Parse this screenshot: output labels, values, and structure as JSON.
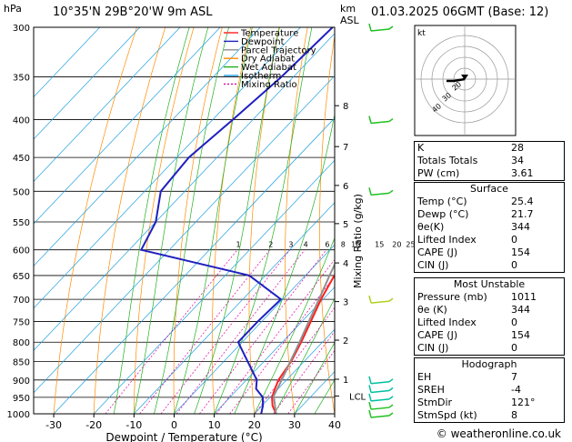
{
  "header": {
    "location": "10°35'N 29B°20'W 9m ASL",
    "datetime": "01.03.2025 06GMT (Base: 12)",
    "hpa_label": "hPa",
    "km_label": "km",
    "asl_label": "ASL"
  },
  "legend": [
    "Temperature",
    "Dewpoint",
    "Parcel Trajectory",
    "Dry Adiabat",
    "Wet Adiabat",
    "Isotherm",
    "Mixing Ratio"
  ],
  "chart_data": {
    "type": "line",
    "title": "",
    "xlabel": "Dewpoint / Temperature (°C)",
    "ylabel": "hPa",
    "right_ylabel": "Mixing Ratio (g/kg)",
    "xlim": [
      -35,
      40
    ],
    "ylim": [
      1000,
      300
    ],
    "x_ticks": [
      -30,
      -20,
      -10,
      0,
      10,
      20,
      30,
      40
    ],
    "pressure_levels": [
      300,
      350,
      400,
      450,
      500,
      550,
      600,
      650,
      700,
      750,
      800,
      850,
      900,
      950,
      1000
    ],
    "km_ticks": [
      {
        "km": "1",
        "p": 898
      },
      {
        "km": "2",
        "p": 795
      },
      {
        "km": "3",
        "p": 705
      },
      {
        "km": "4",
        "p": 625
      },
      {
        "km": "5",
        "p": 553
      },
      {
        "km": "6",
        "p": 491
      },
      {
        "km": "7",
        "p": 435
      },
      {
        "km": "8",
        "p": 383
      }
    ],
    "lcl": {
      "label": "LCL",
      "p": 946
    },
    "mixing_ratio_labels": [
      "1",
      "2",
      "3",
      "4",
      "6",
      "8",
      "10",
      "15",
      "20",
      "25"
    ],
    "series": [
      {
        "name": "Temperature",
        "color": "#ff2020",
        "p": [
          1000,
          975,
          950,
          925,
          900,
          850,
          800,
          750,
          700,
          650,
          600,
          550,
          500,
          450,
          400,
          350
        ],
        "t": [
          25.4,
          22.6,
          20.5,
          19.2,
          18.0,
          16.8,
          14.7,
          12.2,
          9.5,
          7.2,
          5.7,
          2.0,
          -2.7,
          -8.5,
          -15.7,
          -24.5
        ]
      },
      {
        "name": "Dewpoint",
        "color": "#2020c0",
        "p": [
          1000,
          975,
          950,
          925,
          900,
          850,
          800,
          750,
          700,
          650,
          600,
          550,
          500,
          450,
          400,
          350,
          300
        ],
        "t": [
          21.7,
          20.2,
          18.2,
          14.5,
          12.6,
          6.0,
          -1.0,
          -1.0,
          -0.5,
          -14.0,
          -47.0,
          -50.0,
          -56.0,
          -57.0,
          -55.0,
          -53.0,
          -52.0
        ]
      },
      {
        "name": "Parcel Trajectory",
        "color": "#909090",
        "p": [
          1000,
          946,
          900,
          850,
          800,
          750,
          700,
          650,
          600,
          550,
          500,
          450,
          400,
          350
        ],
        "t": [
          25.4,
          20.6,
          18.8,
          16.6,
          14.3,
          11.7,
          9.0,
          6.0,
          2.9,
          -0.8,
          -5.0,
          -10.0,
          -16.3,
          -24.0
        ]
      }
    ]
  },
  "hodograph": {
    "label": "kt",
    "rings": [
      "10",
      "20",
      "30",
      "40"
    ]
  },
  "wind_flags": [
    {
      "p": 1000,
      "color": "#20c020"
    },
    {
      "p": 975,
      "color": "#20c020"
    },
    {
      "p": 950,
      "color": "#00c0a0"
    },
    {
      "p": 925,
      "color": "#00c0a0"
    },
    {
      "p": 900,
      "color": "#00c0a0"
    },
    {
      "p": 700,
      "color": "#b0d020"
    },
    {
      "p": 500,
      "color": "#20c020"
    },
    {
      "p": 400,
      "color": "#20c020"
    },
    {
      "p": 300,
      "color": "#20c020"
    }
  ],
  "indices": [
    {
      "label": "K",
      "value": "28"
    },
    {
      "label": "Totals Totals",
      "value": "34"
    },
    {
      "label": "PW (cm)",
      "value": "3.61"
    }
  ],
  "surface": {
    "title": "Surface",
    "rows": [
      {
        "label": "Temp (°C)",
        "value": "25.4"
      },
      {
        "label": "Dewp (°C)",
        "value": "21.7"
      },
      {
        "label": "θe(K)",
        "value": "344"
      },
      {
        "label": "Lifted Index",
        "value": "0"
      },
      {
        "label": "CAPE (J)",
        "value": "154"
      },
      {
        "label": "CIN (J)",
        "value": "0"
      }
    ]
  },
  "most_unstable": {
    "title": "Most Unstable",
    "rows": [
      {
        "label": "Pressure (mb)",
        "value": "1011"
      },
      {
        "label": "θe (K)",
        "value": "344"
      },
      {
        "label": "Lifted Index",
        "value": "0"
      },
      {
        "label": "CAPE (J)",
        "value": "154"
      },
      {
        "label": "CIN (J)",
        "value": "0"
      }
    ]
  },
  "hodograph_table": {
    "title": "Hodograph",
    "rows": [
      {
        "label": "EH",
        "value": "7"
      },
      {
        "label": "SREH",
        "value": "-4"
      },
      {
        "label": "StmDir",
        "value": "121°"
      },
      {
        "label": "StmSpd (kt)",
        "value": "8"
      }
    ]
  },
  "credit": "© weatheronline.co.uk"
}
